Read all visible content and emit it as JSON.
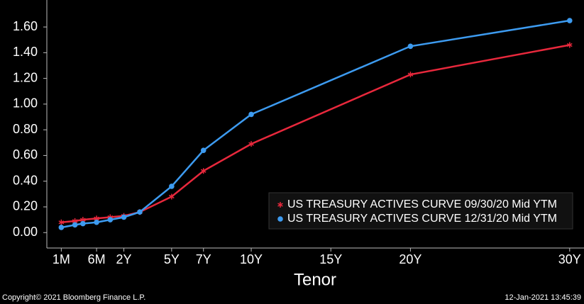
{
  "chart_data": {
    "type": "line",
    "x_label": "Tenor",
    "x": [
      0.0833,
      0.1667,
      0.25,
      0.5,
      1,
      2,
      3,
      5,
      7,
      10,
      20,
      30
    ],
    "series": [
      {
        "name": "US TREASURY ACTIVES CURVE 09/30/20 Mid YTM",
        "color": "#e8283c",
        "marker": "star",
        "values": [
          0.08,
          0.09,
          0.1,
          0.11,
          0.12,
          0.13,
          0.16,
          0.28,
          0.48,
          0.69,
          1.23,
          1.46
        ]
      },
      {
        "name": "US TREASURY ACTIVES CURVE 12/31/20 Mid YTM",
        "color": "#3d9bf0",
        "marker": "circle",
        "values": [
          0.04,
          0.06,
          0.07,
          0.08,
          0.1,
          0.12,
          0.16,
          0.36,
          0.64,
          0.92,
          1.45,
          1.65
        ]
      }
    ],
    "xlim": [
      0.04,
      30.9
    ],
    "xticks": [
      {
        "value": 0.0833,
        "label": "1M"
      },
      {
        "value": 0.5,
        "label": "6M"
      },
      {
        "value": 2,
        "label": "2Y"
      },
      {
        "value": 5,
        "label": "5Y"
      },
      {
        "value": 7,
        "label": "7Y"
      },
      {
        "value": 10,
        "label": "10Y"
      },
      {
        "value": 15,
        "label": "15Y"
      },
      {
        "value": 20,
        "label": "20Y"
      },
      {
        "value": 30,
        "label": "30Y"
      }
    ],
    "ylim": [
      -0.12,
      1.81
    ],
    "yticks": [
      {
        "value": 0,
        "label": "0.00"
      },
      {
        "value": 0.2,
        "label": "0.20"
      },
      {
        "value": 0.4,
        "label": "0.40"
      },
      {
        "value": 0.6,
        "label": "0.60"
      },
      {
        "value": 0.8,
        "label": "0.80"
      },
      {
        "value": 1,
        "label": "1.00"
      },
      {
        "value": 1.2,
        "label": "1.20"
      },
      {
        "value": 1.4,
        "label": "1.40"
      },
      {
        "value": 1.6,
        "label": "1.60"
      }
    ],
    "legend": "lower right",
    "grid": false
  },
  "footer": {
    "left": "Copyright© 2021 Bloomberg Finance L.P.",
    "right": "12-Jan-2021 13:45:39"
  }
}
